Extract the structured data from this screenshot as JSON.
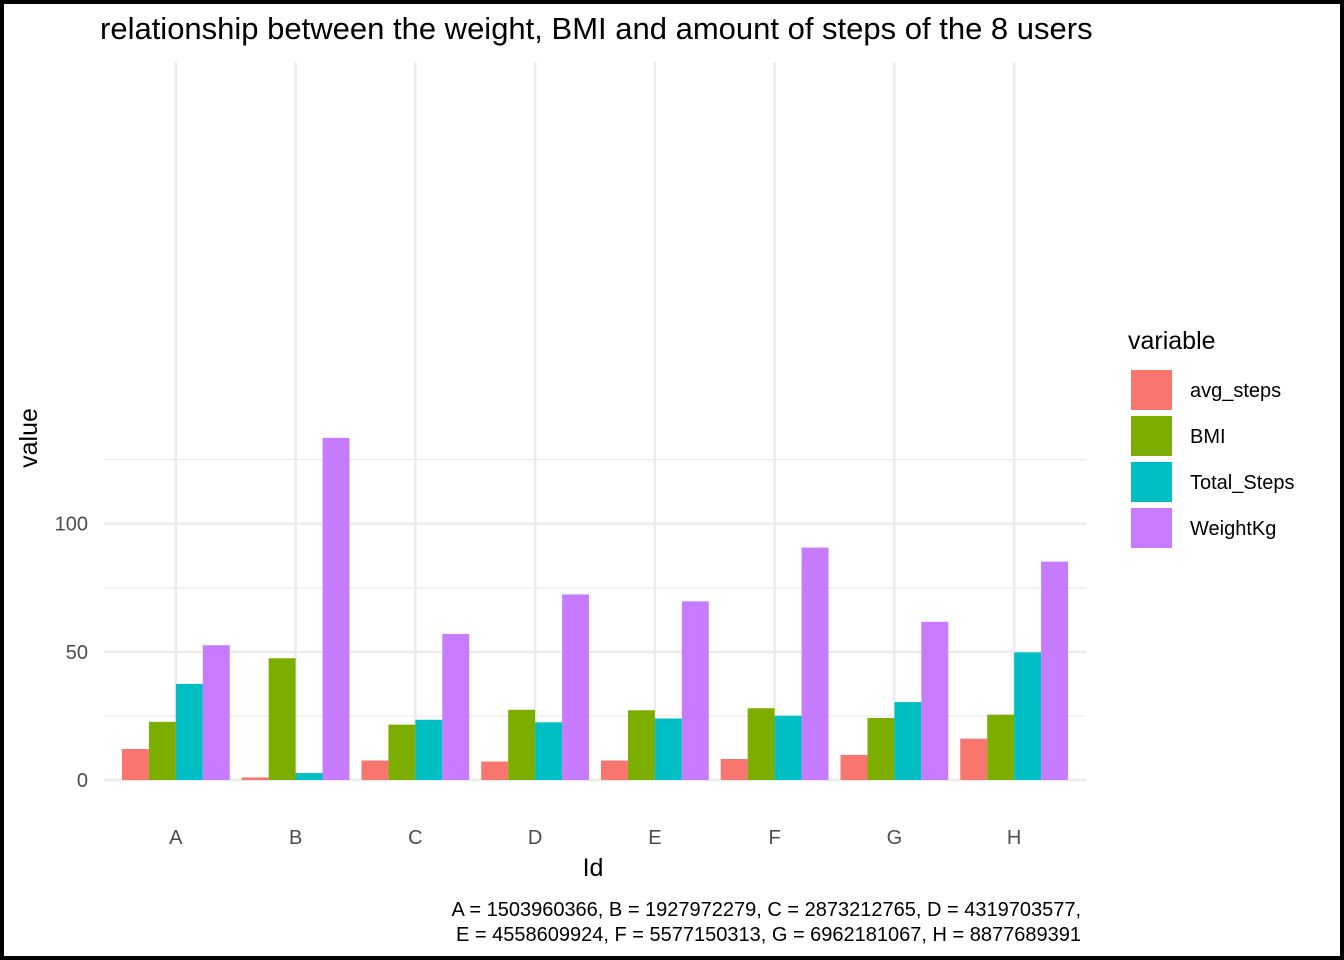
{
  "colors": {
    "avg_steps": "#f8766d",
    "BMI": "#7cae00",
    "Total_Steps": "#00bfc4",
    "WeightKg": "#c77cff",
    "grid": "#ebebeb",
    "frame": "#000000"
  },
  "chart_data": {
    "type": "bar",
    "title": "relationship between the weight, BMI and amount of steps of the 8 users",
    "xlabel": "Id",
    "ylabel": "value",
    "categories": [
      "A",
      "B",
      "C",
      "D",
      "E",
      "F",
      "G",
      "H"
    ],
    "series": [
      {
        "name": "avg_steps",
        "values": [
          12.1,
          1.0,
          7.6,
          7.2,
          7.6,
          8.2,
          9.8,
          16.1
        ]
      },
      {
        "name": "BMI",
        "values": [
          22.7,
          47.5,
          21.6,
          27.4,
          27.2,
          28.0,
          24.2,
          25.5
        ]
      },
      {
        "name": "Total_Steps",
        "values": [
          37.5,
          2.7,
          23.5,
          22.5,
          24.0,
          25.1,
          30.4,
          49.8
        ]
      },
      {
        "name": "WeightKg",
        "values": [
          52.6,
          133.5,
          57.0,
          72.4,
          69.7,
          90.7,
          61.7,
          85.2
        ]
      }
    ],
    "yticks": [
      "0",
      "50",
      "100"
    ],
    "ylim": [
      0,
      140
    ],
    "grid": true,
    "legend": {
      "title": "variable",
      "position": "right"
    },
    "caption": [
      "A = 1503960366, B = 1927972279, C = 2873212765, D = 4319703577,",
      "E = 4558609924, F = 5577150313, G = 6962181067, H = 8877689391"
    ]
  }
}
